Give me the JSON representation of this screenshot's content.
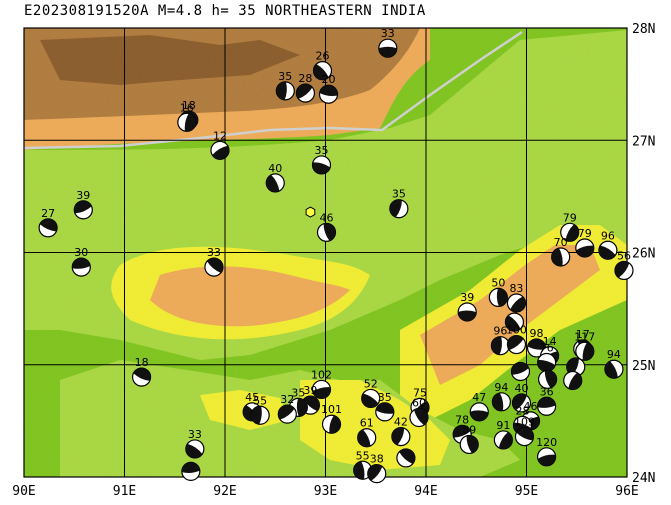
{
  "title": "E202308191520A M=4.8 h= 35 NORTHEASTERN INDIA",
  "map": {
    "lon_range": [
      90,
      96
    ],
    "lat_range": [
      24,
      28
    ],
    "x_ticks": [
      "90E",
      "91E",
      "92E",
      "93E",
      "94E",
      "95E",
      "96E"
    ],
    "y_ticks": [
      "28N",
      "27N",
      "26N",
      "25N",
      "24N"
    ],
    "colors": {
      "lowland_green": "#7ec51a",
      "light_green": "#a8d83e",
      "yellow": "#f2ee2e",
      "orange": "#efaa55",
      "highland_brown": "#b07a3a",
      "grid": "#000000",
      "border": "#cfcfcf",
      "epicenter": "#ffff44"
    },
    "epicenter": {
      "lon": 92.85,
      "lat": 26.36,
      "icon": "hexagon-icon"
    },
    "events": [
      {
        "depth": "33",
        "lon": 93.62,
        "lat": 27.82
      },
      {
        "depth": "26",
        "lon": 92.97,
        "lat": 27.62
      },
      {
        "depth": "35",
        "lon": 92.6,
        "lat": 27.44
      },
      {
        "depth": "28",
        "lon": 92.8,
        "lat": 27.42
      },
      {
        "depth": "20",
        "lon": 93.03,
        "lat": 27.41
      },
      {
        "depth": "18",
        "lon": 91.64,
        "lat": 27.18
      },
      {
        "depth": "16",
        "lon": 91.62,
        "lat": 27.16
      },
      {
        "depth": "12",
        "lon": 91.95,
        "lat": 26.91
      },
      {
        "depth": "35",
        "lon": 92.96,
        "lat": 26.78
      },
      {
        "depth": "40",
        "lon": 92.5,
        "lat": 26.62
      },
      {
        "depth": "35",
        "lon": 93.73,
        "lat": 26.39
      },
      {
        "depth": "39",
        "lon": 90.59,
        "lat": 26.38
      },
      {
        "depth": "27",
        "lon": 90.24,
        "lat": 26.22
      },
      {
        "depth": "46",
        "lon": 93.01,
        "lat": 26.18
      },
      {
        "depth": "79",
        "lon": 95.43,
        "lat": 26.18
      },
      {
        "depth": "79",
        "lon": 95.58,
        "lat": 26.04
      },
      {
        "depth": "96",
        "lon": 95.81,
        "lat": 26.02
      },
      {
        "depth": "70",
        "lon": 95.34,
        "lat": 25.96
      },
      {
        "depth": "56",
        "lon": 95.97,
        "lat": 25.84
      },
      {
        "depth": "30",
        "lon": 90.57,
        "lat": 25.87
      },
      {
        "depth": "33",
        "lon": 91.89,
        "lat": 25.87
      },
      {
        "depth": "50",
        "lon": 94.72,
        "lat": 25.6
      },
      {
        "depth": "83",
        "lon": 94.9,
        "lat": 25.55
      },
      {
        "depth": "39",
        "lon": 94.41,
        "lat": 25.47
      },
      {
        "depth": "",
        "lon": 94.88,
        "lat": 25.38
      },
      {
        "depth": "96",
        "lon": 94.74,
        "lat": 25.17
      },
      {
        "depth": "100",
        "lon": 94.9,
        "lat": 25.18
      },
      {
        "depth": "98",
        "lon": 95.1,
        "lat": 25.15
      },
      {
        "depth": "17",
        "lon": 95.56,
        "lat": 25.14
      },
      {
        "depth": "117",
        "lon": 95.58,
        "lat": 25.12
      },
      {
        "depth": "14",
        "lon": 95.23,
        "lat": 25.08
      },
      {
        "depth": "76",
        "lon": 95.2,
        "lat": 25.02
      },
      {
        "depth": "94",
        "lon": 95.87,
        "lat": 24.96
      },
      {
        "depth": "",
        "lon": 95.49,
        "lat": 24.98
      },
      {
        "depth": "",
        "lon": 94.94,
        "lat": 24.94
      },
      {
        "depth": "18",
        "lon": 91.17,
        "lat": 24.89
      },
      {
        "depth": "",
        "lon": 95.21,
        "lat": 24.87
      },
      {
        "depth": "",
        "lon": 95.46,
        "lat": 24.86
      },
      {
        "depth": "102",
        "lon": 92.96,
        "lat": 24.78
      },
      {
        "depth": "52",
        "lon": 93.45,
        "lat": 24.7
      },
      {
        "depth": "94",
        "lon": 94.75,
        "lat": 24.67
      },
      {
        "depth": "40",
        "lon": 94.95,
        "lat": 24.66
      },
      {
        "depth": "36",
        "lon": 95.2,
        "lat": 24.63
      },
      {
        "depth": "39",
        "lon": 92.85,
        "lat": 24.64
      },
      {
        "depth": "35",
        "lon": 92.73,
        "lat": 24.62
      },
      {
        "depth": "75",
        "lon": 93.94,
        "lat": 24.62
      },
      {
        "depth": "47",
        "lon": 94.53,
        "lat": 24.58
      },
      {
        "depth": "45",
        "lon": 92.27,
        "lat": 24.58
      },
      {
        "depth": "55",
        "lon": 92.35,
        "lat": 24.55
      },
      {
        "depth": "32",
        "lon": 92.62,
        "lat": 24.56
      },
      {
        "depth": "35",
        "lon": 93.59,
        "lat": 24.58
      },
      {
        "depth": "60",
        "lon": 93.93,
        "lat": 24.53
      },
      {
        "depth": "101",
        "lon": 93.06,
        "lat": 24.47
      },
      {
        "depth": "46",
        "lon": 95.04,
        "lat": 24.5
      },
      {
        "depth": "28",
        "lon": 94.96,
        "lat": 24.46
      },
      {
        "depth": "61",
        "lon": 93.41,
        "lat": 24.35
      },
      {
        "depth": "42",
        "lon": 93.75,
        "lat": 24.36
      },
      {
        "depth": "78",
        "lon": 94.36,
        "lat": 24.38
      },
      {
        "depth": "109",
        "lon": 94.98,
        "lat": 24.36
      },
      {
        "depth": "89",
        "lon": 94.43,
        "lat": 24.29
      },
      {
        "depth": "91",
        "lon": 94.77,
        "lat": 24.33
      },
      {
        "depth": "120",
        "lon": 95.2,
        "lat": 24.18
      },
      {
        "depth": "33",
        "lon": 91.7,
        "lat": 24.25
      },
      {
        "depth": "55",
        "lon": 93.37,
        "lat": 24.06
      },
      {
        "depth": "38",
        "lon": 93.51,
        "lat": 24.03
      },
      {
        "depth": "",
        "lon": 91.66,
        "lat": 24.05
      },
      {
        "depth": "",
        "lon": 93.8,
        "lat": 24.17
      }
    ]
  }
}
